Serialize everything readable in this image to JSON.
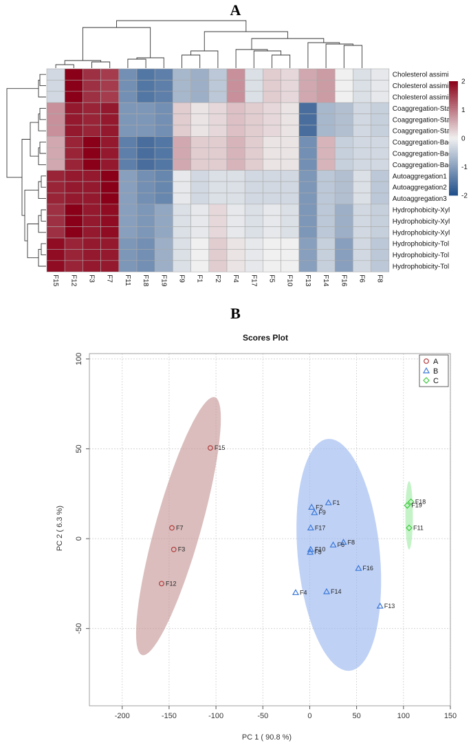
{
  "panels": {
    "a": "A",
    "b": "B"
  },
  "chart_data": [
    {
      "type": "heatmap",
      "rows": [
        "Cholesterol assimi",
        "Cholesterol assimi",
        "Cholesterol assimi",
        "Coaggregation-Stap",
        "Coaggregation-Stap",
        "Coaggregation-Stap",
        "Coaggregation-Baci",
        "Coaggregation-Baci",
        "Coaggregation-Baci",
        "Autoaggregation1",
        "Autoaggregation2",
        "Autoaggregation3",
        "Hydrophobicity-Xyl",
        "Hydrophobicity-Xyl",
        "Hydrophobicity-Xyl",
        "Hydrophobicity-Tol",
        "Hydrophobicity-Tol",
        "Hydrophobicity-Tol"
      ],
      "columns": [
        "F15",
        "F12",
        "F3",
        "F7",
        "F11",
        "F18",
        "F19",
        "F9",
        "F1",
        "F2",
        "F4",
        "F17",
        "F5",
        "F10",
        "F13",
        "F14",
        "F16",
        "F6",
        "F8"
      ],
      "values": [
        [
          -0.3,
          2.2,
          1.6,
          1.5,
          -1.2,
          -1.5,
          -1.4,
          -0.7,
          -0.8,
          -0.5,
          0.8,
          -0.2,
          0.3,
          0.2,
          0.6,
          0.7,
          0,
          -0.2,
          -0.1
        ],
        [
          -0.3,
          2.2,
          1.6,
          1.5,
          -1.2,
          -1.5,
          -1.4,
          -0.7,
          -0.8,
          -0.5,
          0.8,
          -0.2,
          0.3,
          0.2,
          0.6,
          0.7,
          0,
          -0.2,
          -0.1
        ],
        [
          -0.3,
          2.2,
          1.6,
          1.5,
          -1.2,
          -1.5,
          -1.4,
          -0.7,
          -0.8,
          -0.5,
          0.8,
          -0.2,
          0.3,
          0.2,
          0.6,
          0.7,
          0,
          -0.2,
          -0.1
        ],
        [
          0.8,
          1.8,
          1.7,
          1.8,
          -1.1,
          -1.1,
          -1.2,
          0.3,
          0.1,
          0.2,
          0.4,
          0.3,
          0.2,
          0.1,
          -1.6,
          -0.7,
          -0.6,
          -0.3,
          -0.4
        ],
        [
          0.8,
          1.8,
          1.7,
          1.8,
          -1.1,
          -1.1,
          -1.2,
          0.3,
          0.1,
          0.2,
          0.4,
          0.3,
          0.2,
          0.1,
          -1.6,
          -0.7,
          -0.6,
          -0.3,
          -0.4
        ],
        [
          0.8,
          1.8,
          1.7,
          1.8,
          -1.1,
          -1.1,
          -1.2,
          0.3,
          0.1,
          0.2,
          0.4,
          0.3,
          0.2,
          0.1,
          -1.6,
          -0.7,
          -0.6,
          -0.3,
          -0.4
        ],
        [
          0.6,
          1.7,
          2.2,
          1.8,
          -1.4,
          -1.6,
          -1.5,
          0.6,
          0.3,
          0.3,
          0.5,
          0.3,
          0.1,
          0.1,
          -1.2,
          0.5,
          -0.4,
          -0.3,
          -0.3
        ],
        [
          0.6,
          1.7,
          2.2,
          1.8,
          -1.4,
          -1.6,
          -1.5,
          0.6,
          0.3,
          0.3,
          0.5,
          0.3,
          0.1,
          0.1,
          -1.2,
          0.5,
          -0.4,
          -0.3,
          -0.3
        ],
        [
          0.6,
          1.7,
          2.2,
          1.8,
          -1.4,
          -1.6,
          -1.5,
          0.6,
          0.3,
          0.3,
          0.5,
          0.3,
          0.1,
          0.1,
          -1.2,
          0.5,
          -0.4,
          -0.3,
          -0.3
        ],
        [
          1.7,
          1.8,
          1.8,
          2.0,
          -1.0,
          -1.2,
          -1.3,
          -0.1,
          -0.3,
          -0.2,
          -0.2,
          -0.3,
          -0.3,
          -0.3,
          -1.1,
          -0.5,
          -0.6,
          -0.2,
          -0.5
        ],
        [
          1.7,
          1.8,
          1.8,
          2.0,
          -1.0,
          -1.2,
          -1.3,
          -0.1,
          -0.3,
          -0.2,
          -0.2,
          -0.3,
          -0.3,
          -0.3,
          -1.1,
          -0.5,
          -0.6,
          -0.2,
          -0.5
        ],
        [
          1.7,
          1.8,
          1.8,
          2.0,
          -1.0,
          -1.2,
          -1.3,
          -0.1,
          -0.3,
          -0.2,
          -0.2,
          -0.3,
          -0.3,
          -0.3,
          -1.1,
          -0.5,
          -0.6,
          -0.2,
          -0.5
        ],
        [
          1.6,
          2.0,
          1.8,
          1.9,
          -1.0,
          -1.1,
          -0.9,
          -0.2,
          -0.1,
          0.2,
          -0.1,
          -0.2,
          -0.1,
          -0.2,
          -1.1,
          -0.5,
          -0.8,
          -0.3,
          -0.4
        ],
        [
          1.6,
          2.0,
          1.8,
          1.9,
          -1.0,
          -1.1,
          -0.9,
          -0.2,
          -0.1,
          0.2,
          -0.1,
          -0.2,
          -0.1,
          -0.2,
          -1.1,
          -0.5,
          -0.8,
          -0.3,
          -0.4
        ],
        [
          1.6,
          2.0,
          1.8,
          1.9,
          -1.0,
          -1.1,
          -0.9,
          -0.2,
          -0.1,
          0.2,
          -0.1,
          -0.2,
          -0.1,
          -0.2,
          -1.1,
          -0.5,
          -0.8,
          -0.3,
          -0.4
        ],
        [
          1.9,
          1.7,
          1.8,
          1.8,
          -1.1,
          -1.2,
          -0.8,
          -0.2,
          0.0,
          0.3,
          0.1,
          -0.1,
          0.0,
          0.0,
          -1.0,
          -0.4,
          -1.0,
          -0.3,
          -0.5
        ],
        [
          1.9,
          1.7,
          1.8,
          1.8,
          -1.1,
          -1.2,
          -0.8,
          -0.2,
          0.0,
          0.3,
          0.1,
          -0.1,
          0.0,
          0.0,
          -1.0,
          -0.4,
          -1.0,
          -0.3,
          -0.5
        ],
        [
          1.9,
          1.7,
          1.8,
          1.8,
          -1.1,
          -1.2,
          -0.8,
          -0.2,
          0.0,
          0.3,
          0.1,
          -0.1,
          0.0,
          0.0,
          -1.0,
          -0.4,
          -1.0,
          -0.3,
          -0.5
        ]
      ],
      "color_scale": {
        "low": "#1f4e8a",
        "mid": "#f0f0f0",
        "high": "#8a0018",
        "range": [
          -2,
          2
        ],
        "ticks": [
          2,
          1,
          0,
          -1,
          -2
        ]
      }
    },
    {
      "type": "scatter",
      "title": "Scores Plot",
      "xlabel": "PC 1 ( 90.8 %)",
      "ylabel": "PC 2 ( 6.3 %)",
      "xlim": [
        -235,
        150
      ],
      "ylim": [
        -93,
        103
      ],
      "xticks": [
        -200,
        -150,
        -100,
        -50,
        0,
        50,
        100,
        150
      ],
      "yticks": [
        -50,
        0,
        50,
        100
      ],
      "grid": true,
      "legend_position": "top-right",
      "series": [
        {
          "name": "A",
          "marker": "circle",
          "color": "#b03a3a",
          "ellipse_color": "#c89a9a",
          "points": [
            {
              "label": "F15",
              "x": -106,
              "y": 50.5
            },
            {
              "label": "F7",
              "x": -147,
              "y": 6
            },
            {
              "label": "F3",
              "x": -145,
              "y": -6
            },
            {
              "label": "F12",
              "x": -158,
              "y": -25
            }
          ],
          "ellipse": {
            "cx": -140,
            "cy": 7,
            "rx": 82,
            "ry": 22,
            "angle_deg": 60
          }
        },
        {
          "name": "B",
          "marker": "triangle",
          "color": "#3a78d8",
          "ellipse_color": "#9db8f0",
          "points": [
            {
              "label": "F1",
              "x": 20,
              "y": 20
            },
            {
              "label": "F2",
              "x": 2,
              "y": 17.5
            },
            {
              "label": "F9",
              "x": 5,
              "y": 14.5
            },
            {
              "label": "F17",
              "x": 1,
              "y": 6
            },
            {
              "label": "F8",
              "x": 36,
              "y": -2
            },
            {
              "label": "F6",
              "x": 25,
              "y": -3.5
            },
            {
              "label": "F10",
              "x": 1,
              "y": -6
            },
            {
              "label": "F5",
              "x": 0.5,
              "y": -7.5
            },
            {
              "label": "F16",
              "x": 52,
              "y": -16.5
            },
            {
              "label": "F4",
              "x": -15,
              "y": -30
            },
            {
              "label": "F14",
              "x": 18,
              "y": -29.5
            },
            {
              "label": "F13",
              "x": 75,
              "y": -37.5
            }
          ],
          "ellipse": {
            "cx": 31,
            "cy": -9,
            "rx": 43,
            "ry": 66,
            "angle_deg": 16
          }
        },
        {
          "name": "C",
          "marker": "diamond",
          "color": "#3ec83e",
          "ellipse_color": "#a6ecaa",
          "points": [
            {
              "label": "F18",
              "x": 108,
              "y": 20.5
            },
            {
              "label": "F19",
              "x": 104,
              "y": 18.5
            },
            {
              "label": "F11",
              "x": 106,
              "y": 6
            }
          ],
          "ellipse": {
            "cx": 106,
            "cy": 13,
            "rx": 4,
            "ry": 19,
            "angle_deg": 0
          }
        }
      ]
    }
  ]
}
